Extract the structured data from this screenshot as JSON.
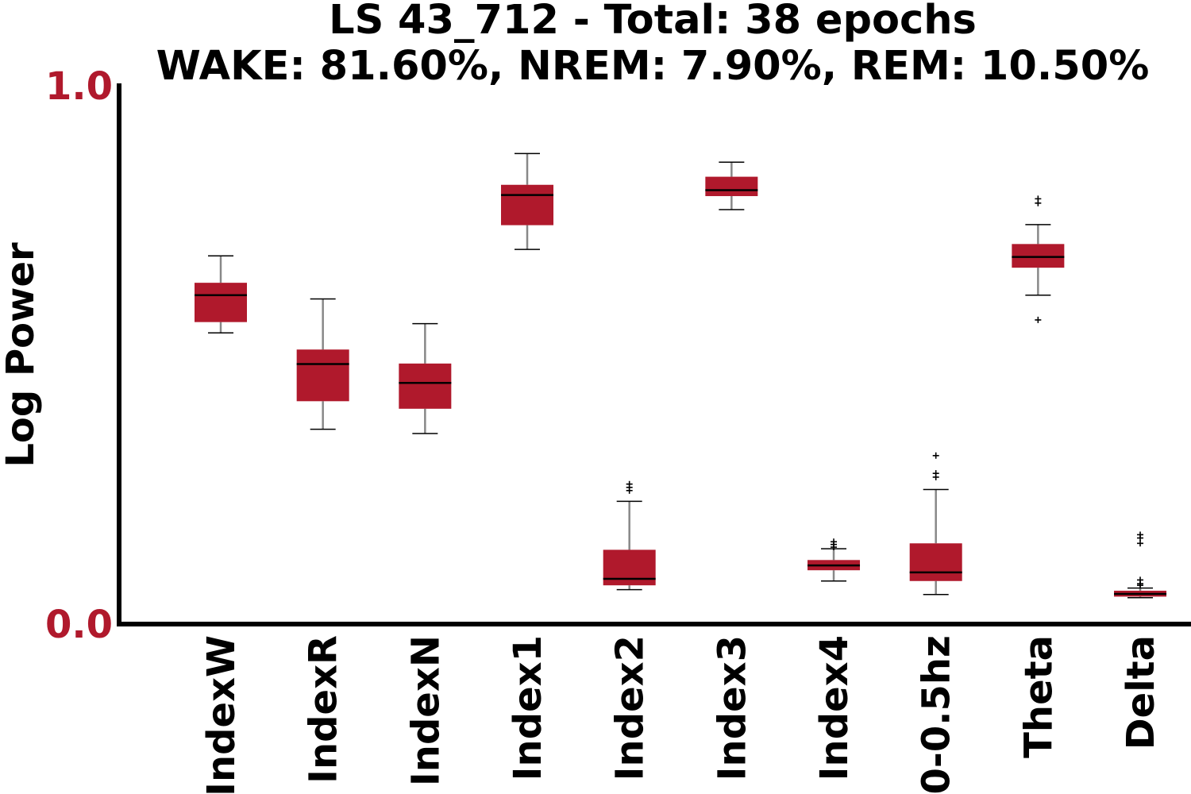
{
  "chart_data": {
    "type": "box",
    "title": "LS 43_712 - Total: 38 epochs",
    "subtitle": "WAKE: 81.60%, NREM: 7.90%, REM: 10.50%",
    "ylabel": "Log Power",
    "xlabel": "",
    "ylim": [
      0.0,
      1.0
    ],
    "yticks": [
      {
        "value": 0.0,
        "label": "0.0"
      },
      {
        "value": 1.0,
        "label": "1.0"
      }
    ],
    "grid": false,
    "legend": "none",
    "categories": [
      "IndexW",
      "IndexR",
      "IndexN",
      "Index1",
      "Index2",
      "Index3",
      "Index4",
      "0-0.5hz",
      "Theta",
      "Delta"
    ],
    "boxes": [
      {
        "category": "IndexW",
        "whisker_low": 0.541,
        "q1": 0.561,
        "median": 0.611,
        "q3": 0.634,
        "whisker_high": 0.684,
        "outliers": []
      },
      {
        "category": "IndexR",
        "whisker_low": 0.362,
        "q1": 0.414,
        "median": 0.483,
        "q3": 0.51,
        "whisker_high": 0.604,
        "outliers": []
      },
      {
        "category": "IndexN",
        "whisker_low": 0.354,
        "q1": 0.4,
        "median": 0.448,
        "q3": 0.484,
        "whisker_high": 0.558,
        "outliers": []
      },
      {
        "category": "Index1",
        "whisker_low": 0.696,
        "q1": 0.741,
        "median": 0.797,
        "q3": 0.816,
        "whisker_high": 0.874,
        "outliers": []
      },
      {
        "category": "Index2",
        "whisker_low": 0.064,
        "q1": 0.072,
        "median": 0.084,
        "q3": 0.138,
        "whisker_high": 0.228,
        "outliers": [
          0.248,
          0.254,
          0.26
        ]
      },
      {
        "category": "Index3",
        "whisker_low": 0.77,
        "q1": 0.795,
        "median": 0.806,
        "q3": 0.831,
        "whisker_high": 0.858,
        "outliers": []
      },
      {
        "category": "Index4",
        "whisker_low": 0.08,
        "q1": 0.1,
        "median": 0.109,
        "q3": 0.119,
        "whisker_high": 0.14,
        "outliers": [
          0.143,
          0.148,
          0.153
        ]
      },
      {
        "category": "0-0.5hz",
        "whisker_low": 0.055,
        "q1": 0.08,
        "median": 0.096,
        "q3": 0.15,
        "whisker_high": 0.25,
        "outliers": [
          0.273,
          0.28,
          0.313
        ]
      },
      {
        "category": "Theta",
        "whisker_low": 0.611,
        "q1": 0.662,
        "median": 0.682,
        "q3": 0.706,
        "whisker_high": 0.742,
        "outliers": [
          0.565,
          0.782,
          0.79
        ]
      },
      {
        "category": "Delta",
        "whisker_low": 0.049,
        "q1": 0.051,
        "median": 0.056,
        "q3": 0.062,
        "whisker_high": 0.067,
        "outliers": [
          0.072,
          0.075,
          0.082,
          0.15,
          0.16,
          0.166
        ]
      }
    ]
  },
  "colors": {
    "box_fill": "#b0192c",
    "tick_label": "#b0192c",
    "median": "#000000",
    "whisker": "#888888",
    "axis": "#000000"
  }
}
